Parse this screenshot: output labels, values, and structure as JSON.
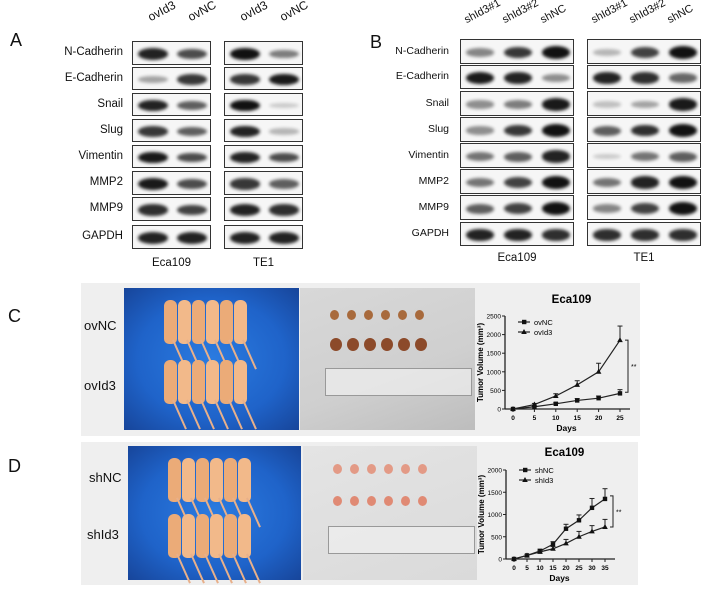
{
  "panels": {
    "A": {
      "letter": "A",
      "lanes": [
        "ovId3",
        "ovNC"
      ],
      "proteins": [
        "N-Cadherin",
        "E-Cadherin",
        "Snail",
        "Slug",
        "Vimentin",
        "MMP2",
        "MMP9",
        "GAPDH"
      ],
      "cell_lines": [
        "Eca109",
        "TE1"
      ],
      "band_intensity": {
        "Eca109": [
          [
            0.9,
            0.7
          ],
          [
            0.25,
            0.8
          ],
          [
            0.9,
            0.6
          ],
          [
            0.8,
            0.6
          ],
          [
            0.95,
            0.7
          ],
          [
            0.95,
            0.7
          ],
          [
            0.85,
            0.75
          ],
          [
            0.9,
            0.9
          ]
        ],
        "TE1": [
          [
            1.0,
            0.45
          ],
          [
            0.8,
            0.95
          ],
          [
            1.0,
            0.05
          ],
          [
            0.9,
            0.15
          ],
          [
            0.9,
            0.7
          ],
          [
            0.8,
            0.6
          ],
          [
            0.9,
            0.85
          ],
          [
            0.9,
            0.9
          ]
        ]
      }
    },
    "B": {
      "letter": "B",
      "lanes": [
        "shId3#1",
        "shId3#2",
        "shNC"
      ],
      "proteins": [
        "N-Cadherin",
        "E-Cadherin",
        "Snail",
        "Slug",
        "Vimentin",
        "MMP2",
        "MMP9",
        "GAPDH"
      ],
      "cell_lines": [
        "Eca109",
        "TE1"
      ],
      "band_intensity": {
        "Eca109": [
          [
            0.4,
            0.8,
            1.0
          ],
          [
            0.95,
            0.9,
            0.35
          ],
          [
            0.35,
            0.45,
            0.95
          ],
          [
            0.35,
            0.8,
            1.0
          ],
          [
            0.5,
            0.6,
            0.9
          ],
          [
            0.5,
            0.75,
            1.0
          ],
          [
            0.6,
            0.75,
            1.0
          ],
          [
            0.9,
            0.9,
            0.85
          ]
        ],
        "TE1": [
          [
            0.15,
            0.75,
            1.0
          ],
          [
            0.9,
            0.85,
            0.55
          ],
          [
            0.1,
            0.25,
            0.95
          ],
          [
            0.6,
            0.85,
            1.0
          ],
          [
            0.05,
            0.5,
            0.6
          ],
          [
            0.5,
            0.9,
            1.0
          ],
          [
            0.4,
            0.75,
            1.0
          ],
          [
            0.85,
            0.85,
            0.85
          ]
        ]
      }
    },
    "C": {
      "letter": "C",
      "groups": [
        "ovNC",
        "ovId3"
      ]
    },
    "D": {
      "letter": "D",
      "groups": [
        "shNC",
        "shId3"
      ]
    }
  },
  "chart_data": [
    {
      "type": "line",
      "title": "Eca109",
      "xlabel": "Days",
      "ylabel": "Tumor Volume (mm³)",
      "x": [
        0,
        5,
        10,
        15,
        20,
        25
      ],
      "xticks": [
        "0",
        "5",
        "10",
        "15",
        "20",
        "25"
      ],
      "yticks": [
        "0",
        "500",
        "1000",
        "1500",
        "2000",
        "2500"
      ],
      "ylim": [
        0,
        2500
      ],
      "series": [
        {
          "name": "ovNC",
          "marker": "square",
          "values": [
            0,
            60,
            140,
            230,
            290,
            420
          ],
          "errors": [
            0,
            20,
            30,
            50,
            60,
            100
          ]
        },
        {
          "name": "ovId3",
          "marker": "triangle",
          "values": [
            0,
            120,
            350,
            650,
            1000,
            1850
          ],
          "errors": [
            0,
            30,
            60,
            110,
            230,
            380
          ]
        }
      ],
      "significance": "**",
      "legend_position": "upper-left",
      "grid": false
    },
    {
      "type": "line",
      "title": "Eca109",
      "xlabel": "Days",
      "ylabel": "Tumor Volume (mm³)",
      "x": [
        0,
        5,
        10,
        15,
        20,
        25,
        30,
        35
      ],
      "xticks": [
        "0",
        "5",
        "10",
        "15",
        "20",
        "25",
        "30",
        "35"
      ],
      "yticks": [
        "0",
        "500",
        "1000",
        "1500",
        "2000"
      ],
      "ylim": [
        0,
        2000
      ],
      "series": [
        {
          "name": "shNC",
          "marker": "square",
          "values": [
            0,
            80,
            180,
            330,
            680,
            870,
            1150,
            1350
          ],
          "errors": [
            0,
            20,
            40,
            60,
            100,
            120,
            210,
            230
          ]
        },
        {
          "name": "shId3",
          "marker": "triangle",
          "values": [
            0,
            80,
            160,
            230,
            350,
            500,
            620,
            720
          ],
          "errors": [
            0,
            20,
            30,
            50,
            90,
            120,
            130,
            170
          ]
        }
      ],
      "significance": "**",
      "legend_position": "upper-left",
      "grid": false
    }
  ]
}
